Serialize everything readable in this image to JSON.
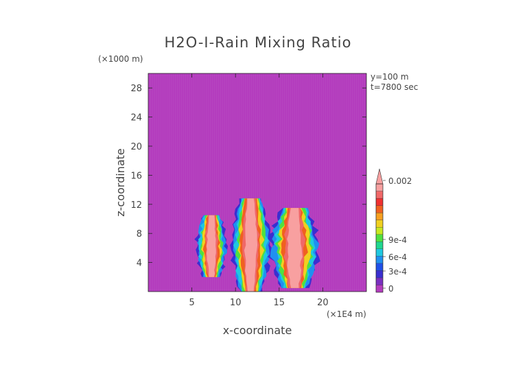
{
  "chart_data": {
    "type": "heatmap",
    "title": "H2O-I-Rain Mixing Ratio",
    "xlabel": "x-coordinate",
    "ylabel": "z-coordinate",
    "x_unit": "(×1E4 m)",
    "y_unit": "(×1000 m)",
    "annotations": [
      "y=100 m",
      "t=7800 sec"
    ],
    "xlim": [
      0,
      25
    ],
    "ylim": [
      0,
      30
    ],
    "x_ticks": [
      5,
      10,
      15,
      20
    ],
    "y_ticks": [
      4,
      8,
      12,
      16,
      20,
      24,
      28
    ],
    "x_tick_labels": [
      "5",
      "10",
      "15",
      "20"
    ],
    "y_tick_labels": [
      "4",
      "8",
      "12",
      "16",
      "20",
      "24",
      "28"
    ],
    "background_color": "#b43cbe",
    "colorbar": {
      "min": 0,
      "max": 0.002,
      "tick_values": [
        0,
        0.0003,
        0.0006,
        0.0009,
        0.002
      ],
      "tick_labels": [
        "0",
        "3e-4",
        "6e-4",
        "9e-4",
        "0.002"
      ],
      "extend": "max",
      "colors": [
        "#b43cbe",
        "#7a2fc0",
        "#3a2fd0",
        "#2050e8",
        "#2090f0",
        "#20c8e0",
        "#20d890",
        "#50e040",
        "#c8e820",
        "#f0d020",
        "#f8a020",
        "#f06020",
        "#f03030",
        "#f06868",
        "#f8a0a0"
      ]
    },
    "features": [
      {
        "name": "left-plume",
        "x_range": [
          5.5,
          9
        ],
        "z_range": [
          2,
          10.5
        ]
      },
      {
        "name": "central-plume",
        "x_range": [
          9.5,
          14
        ],
        "z_range": [
          0,
          12.8
        ]
      },
      {
        "name": "right-plume",
        "x_range": [
          14,
          19.5
        ],
        "z_range": [
          0.5,
          11.5
        ]
      }
    ]
  }
}
